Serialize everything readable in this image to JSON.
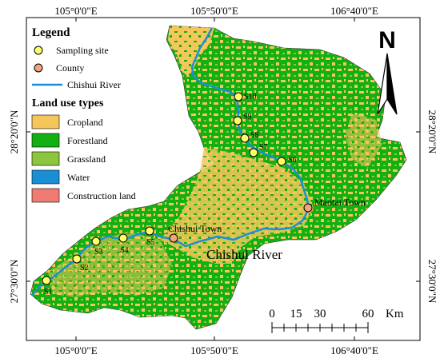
{
  "graticule": {
    "top_labels": [
      "105°0'0\"E",
      "105°50'0\"E",
      "106°40'0\"E"
    ],
    "bottom_labels": [
      "105°0'0\"E",
      "105°50'0\"E",
      "106°40'0\"E"
    ],
    "left_labels": [
      "28°20'0\"N",
      "27°30'0\"N"
    ],
    "right_labels": [
      "28°20'0\"N",
      "27°30'0\"N"
    ]
  },
  "legend": {
    "title": "Legend",
    "sampling_site": "Sampling site",
    "county": "County",
    "river": "Chishui River",
    "landuse_title": "Land use types",
    "landuse": [
      {
        "label": "Cropland",
        "color": "#f5c65a"
      },
      {
        "label": "Forestland",
        "color": "#12b012"
      },
      {
        "label": "Grassland",
        "color": "#8cc63f"
      },
      {
        "label": "Water",
        "color": "#1a8fd6"
      },
      {
        "label": "Construction land",
        "color": "#f07b72"
      }
    ]
  },
  "colors": {
    "sampling_site": "#ffff66",
    "county": "#f4a37d",
    "river": "#1a8fd6"
  },
  "sites": [
    "S1",
    "S2",
    "S3",
    "S4",
    "S5",
    "S6",
    "S7",
    "S8",
    "S9",
    "S10"
  ],
  "counties": [
    "Chishui Town",
    "Maotai Town"
  ],
  "river_label": "Chishui River",
  "north": "N",
  "scale": {
    "ticks": [
      "0",
      "15",
      "30",
      "60"
    ],
    "unit": "Km"
  }
}
